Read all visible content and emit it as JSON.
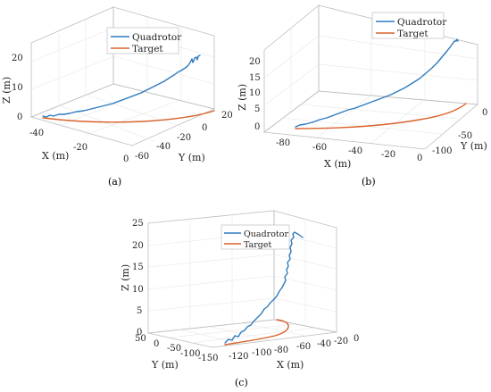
{
  "colors": {
    "quadrotor": "#2f7bbd",
    "target": "#d9622b"
  },
  "chart_data": [
    {
      "type": "line",
      "panel_label": "(a)",
      "xlabel": "X (m)",
      "ylabel": "Y (m)",
      "zlabel": "Z (m)",
      "x_ticks": [
        "-40",
        "-20",
        "0"
      ],
      "y_ticks": [
        "20",
        "0",
        "-20",
        "-40",
        "-60"
      ],
      "z_ticks": [
        "0",
        "10",
        "20"
      ],
      "xlim": [
        -50,
        0
      ],
      "ylim": [
        -60,
        20
      ],
      "zlim": [
        0,
        25
      ],
      "legend": [
        "Quadrotor",
        "Target"
      ],
      "legend_position": "top-center",
      "series": [
        {
          "name": "Quadrotor",
          "x": [
            -46,
            -40,
            -32,
            -24,
            -16,
            -8,
            -2,
            0
          ],
          "y": [
            2,
            4,
            6,
            8,
            10,
            12,
            14,
            15
          ],
          "z": [
            0.2,
            1,
            2.5,
            5,
            8.5,
            12.5,
            16.5,
            20.5
          ]
        },
        {
          "name": "Target",
          "x": [
            -46,
            -40,
            -32,
            -24,
            -16,
            -8,
            -2,
            0
          ],
          "y": [
            2,
            4,
            6,
            8,
            10,
            12,
            14,
            15
          ],
          "z": [
            0,
            0,
            0,
            0,
            0,
            0,
            0,
            0
          ]
        }
      ]
    },
    {
      "type": "line",
      "panel_label": "(b)",
      "xlabel": "X (m)",
      "ylabel": "Y (m)",
      "zlabel": "Z (m)",
      "x_ticks": [
        "-80",
        "-60",
        "-40",
        "-20",
        "0"
      ],
      "y_ticks": [
        "0",
        "-50",
        "-100"
      ],
      "z_ticks": [
        "0",
        "5",
        "10",
        "15",
        "20"
      ],
      "xlim": [
        -80,
        0
      ],
      "ylim": [
        -100,
        0
      ],
      "zlim": [
        0,
        25
      ],
      "legend": [
        "Quadrotor",
        "Target"
      ],
      "legend_position": "top-right",
      "series": [
        {
          "name": "Quadrotor",
          "x": [
            -75,
            -65,
            -55,
            -45,
            -35,
            -25,
            -15,
            -5,
            0
          ],
          "y": [
            -95,
            -88,
            -80,
            -70,
            -58,
            -45,
            -30,
            -12,
            0
          ],
          "z": [
            0.5,
            2,
            4,
            6.5,
            9.5,
            13,
            16.5,
            20.5,
            22
          ]
        },
        {
          "name": "Target",
          "x": [
            -75,
            -65,
            -55,
            -45,
            -35,
            -25,
            -15,
            -5,
            0
          ],
          "y": [
            -95,
            -88,
            -80,
            -70,
            -58,
            -45,
            -30,
            -12,
            0
          ],
          "z": [
            0,
            0,
            0,
            0,
            0,
            0,
            0,
            0,
            0
          ]
        }
      ]
    },
    {
      "type": "line",
      "panel_label": "(c)",
      "xlabel": "X (m)",
      "ylabel": "Y (m)",
      "zlabel": "Z (m)",
      "x_ticks": [
        "-120",
        "-100",
        "-80",
        "-60",
        "-40",
        "-20",
        "0"
      ],
      "y_ticks": [
        "50",
        "0",
        "-50",
        "-100",
        "-150"
      ],
      "z_ticks": [
        "0",
        "5",
        "10",
        "15",
        "20",
        "25"
      ],
      "xlim": [
        -130,
        0
      ],
      "ylim": [
        -150,
        50
      ],
      "zlim": [
        0,
        25
      ],
      "legend": [
        "Quadrotor",
        "Target"
      ],
      "legend_position": "top-left",
      "series": [
        {
          "name": "Quadrotor",
          "x": [
            -120,
            -110,
            -100,
            -95,
            -92,
            -90,
            -88,
            -87
          ],
          "y": [
            -140,
            -110,
            -80,
            -55,
            -35,
            -20,
            -8,
            0
          ],
          "z": [
            0,
            3,
            7,
            10,
            13,
            16,
            19,
            22
          ]
        },
        {
          "name": "Target",
          "x": [
            -120,
            -110,
            -100,
            -90,
            -82,
            -76,
            -74,
            -75
          ],
          "y": [
            -140,
            -110,
            -80,
            -55,
            -35,
            -20,
            -8,
            0
          ],
          "z": [
            0,
            0,
            0,
            0,
            0,
            0,
            0,
            0
          ]
        }
      ]
    }
  ]
}
